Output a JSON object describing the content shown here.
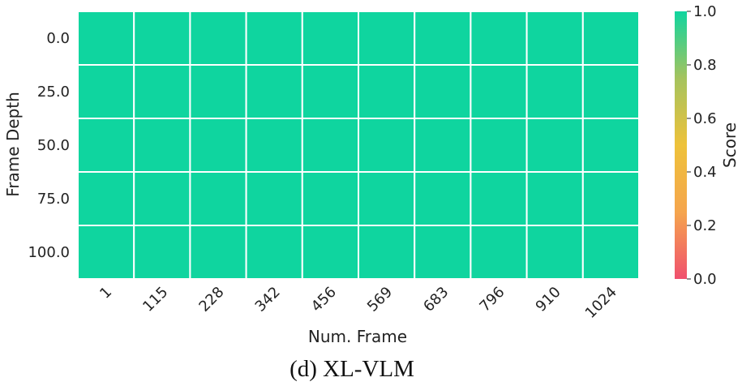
{
  "chart_data": {
    "type": "heatmap",
    "xlabel": "Num. Frame",
    "ylabel": "Frame Depth",
    "x_categories": [
      "1",
      "115",
      "228",
      "342",
      "456",
      "569",
      "683",
      "796",
      "910",
      "1024"
    ],
    "y_categories": [
      "0.0",
      "25.0",
      "50.0",
      "75.0",
      "100.0"
    ],
    "values": [
      [
        1,
        1,
        1,
        1,
        1,
        1,
        1,
        1,
        1,
        1
      ],
      [
        1,
        1,
        1,
        1,
        1,
        1,
        1,
        1,
        1,
        1
      ],
      [
        1,
        1,
        1,
        1,
        1,
        1,
        1,
        1,
        1,
        1
      ],
      [
        1,
        1,
        1,
        1,
        1,
        1,
        1,
        1,
        1,
        1
      ],
      [
        1,
        1,
        1,
        1,
        1,
        1,
        1,
        1,
        1,
        1
      ]
    ],
    "colorbar": {
      "label": "Score",
      "range": [
        0.0,
        1.0
      ],
      "ticks": [
        "0.0",
        "0.2",
        "0.4",
        "0.6",
        "0.8",
        "1.0"
      ],
      "colors": [
        "#f0506e",
        "#f5a54d",
        "#eec23a",
        "#a5c35e",
        "#0fd59f"
      ]
    },
    "grid": true
  },
  "caption": "(d) XL-VLM"
}
